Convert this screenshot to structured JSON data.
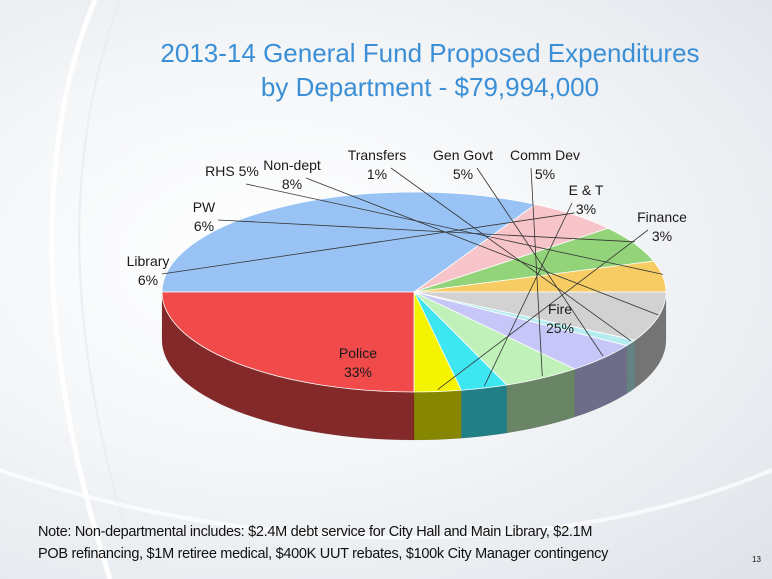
{
  "slide": {
    "title_line1": "2013-14 General Fund Proposed Expenditures",
    "title_line2": "by Department  - $79,994,000",
    "note_line1": "Note:  Non-departmental includes: $2.4M debt service for City Hall and Main Library, $2.1M",
    "note_line2": "POB refinancing, $1M retiree medical, $400K UUT rebates, $100k City Manager contingency",
    "page_number": "13"
  },
  "chart_data": {
    "type": "pie",
    "title": "2013-14 General Fund Proposed Expenditures by Department - $79,994,000",
    "total": "$79,994,000",
    "start_angle_deg": 180,
    "direction": "clockwise",
    "slices": [
      {
        "label": "Police",
        "value": 33,
        "display": "33%",
        "color": "#99c3f4"
      },
      {
        "label": "Library",
        "value": 6,
        "display": "6%",
        "color": "#f7c4c9"
      },
      {
        "label": "PW",
        "value": 6,
        "display": "6%",
        "color": "#93d47a"
      },
      {
        "label": "RHS",
        "value": 5,
        "display": "5%",
        "color": "#f7cc63"
      },
      {
        "label": "Non-dept",
        "value": 8,
        "display": "8%",
        "color": "#d2d2d2"
      },
      {
        "label": "Transfers",
        "value": 1,
        "display": "1%",
        "color": "#b6ecef"
      },
      {
        "label": "Gen Govt",
        "value": 5,
        "display": "5%",
        "color": "#c6c6f9"
      },
      {
        "label": "Comm Dev",
        "value": 5,
        "display": "5%",
        "color": "#bff1b8"
      },
      {
        "label": "E & T",
        "value": 3,
        "display": "3%",
        "color": "#3ee6f2"
      },
      {
        "label": "Finance",
        "value": 3,
        "display": "3%",
        "color": "#f4f400"
      },
      {
        "label": "Fire",
        "value": 25,
        "display": "25%",
        "color": "#f04a4a"
      }
    ]
  }
}
